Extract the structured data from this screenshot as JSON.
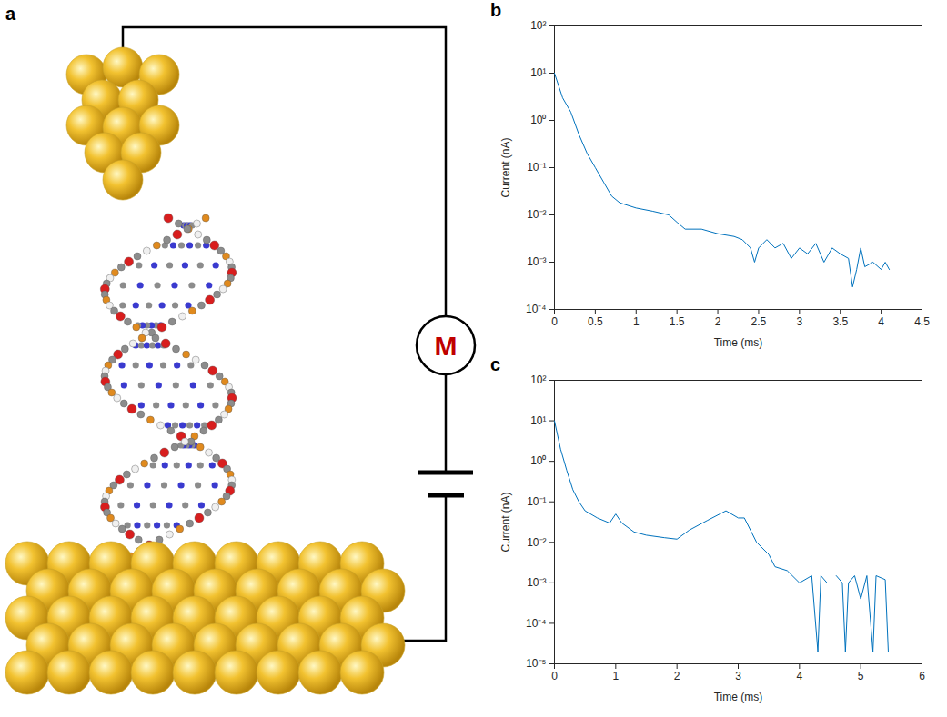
{
  "diagram": {
    "panel": "a",
    "meter_label": "M"
  },
  "chart_data": [
    {
      "panel": "b",
      "type": "line",
      "x": [
        0,
        0.1,
        0.2,
        0.3,
        0.4,
        0.5,
        0.6,
        0.7,
        0.8,
        1.0,
        1.2,
        1.4,
        1.5,
        1.6,
        1.8,
        2.0,
        2.2,
        2.3,
        2.4,
        2.45,
        2.5,
        2.6,
        2.7,
        2.8,
        2.9,
        3.0,
        3.1,
        3.2,
        3.3,
        3.4,
        3.5,
        3.6,
        3.65,
        3.7,
        3.75,
        3.8,
        3.9,
        4.0,
        4.05,
        4.1
      ],
      "values": [
        10,
        3,
        1.5,
        0.5,
        0.2,
        0.1,
        0.05,
        0.025,
        0.018,
        0.014,
        0.012,
        0.01,
        0.007,
        0.005,
        0.005,
        0.004,
        0.0035,
        0.003,
        0.002,
        0.001,
        0.002,
        0.003,
        0.002,
        0.0025,
        0.0012,
        0.002,
        0.0015,
        0.0025,
        0.001,
        0.002,
        0.0015,
        0.0012,
        0.0003,
        0.0007,
        0.002,
        0.0008,
        0.001,
        0.0007,
        0.001,
        0.0007
      ],
      "color": "#0072bd",
      "xlabel": "Time (ms)",
      "ylabel": "Current (nA)",
      "xlim": [
        0,
        4.5
      ],
      "xticks": [
        0,
        0.5,
        1,
        1.5,
        2,
        2.5,
        3,
        3.5,
        4,
        4.5
      ],
      "ylim": [
        0.0001,
        100
      ],
      "yticks": [
        {
          "value": 0.0001,
          "label": "10⁻⁴"
        },
        {
          "value": 0.001,
          "label": "10⁻³"
        },
        {
          "value": 0.01,
          "label": "10⁻²"
        },
        {
          "value": 0.1,
          "label": "10⁻¹"
        },
        {
          "value": 1,
          "label": "10⁰"
        },
        {
          "value": 10,
          "label": "10¹"
        },
        {
          "value": 100,
          "label": "10²"
        }
      ],
      "log": "y",
      "grid": false
    },
    {
      "panel": "c",
      "type": "line",
      "x": [
        0,
        0.1,
        0.2,
        0.3,
        0.4,
        0.5,
        0.7,
        0.9,
        1.0,
        1.1,
        1.3,
        1.5,
        1.8,
        2.0,
        2.2,
        2.5,
        2.8,
        3.0,
        3.1,
        3.3,
        3.5,
        3.6,
        3.8,
        4.0,
        4.2,
        4.3,
        4.35,
        4.45,
        4.55,
        4.6,
        4.7,
        4.75,
        4.8,
        4.9,
        5.0,
        5.1,
        5.2,
        5.25,
        5.4,
        5.45
      ],
      "values": [
        10,
        2,
        0.6,
        0.2,
        0.1,
        0.06,
        0.04,
        0.03,
        0.05,
        0.03,
        0.018,
        0.015,
        0.013,
        0.012,
        0.02,
        0.035,
        0.06,
        0.04,
        0.04,
        0.01,
        0.005,
        0.0025,
        0.002,
        0.001,
        0.0015,
        2e-05,
        0.0015,
        0.001,
        null,
        0.0015,
        0.001,
        2e-05,
        0.001,
        0.0015,
        0.0004,
        0.0015,
        2e-05,
        0.0015,
        0.0012,
        2e-05
      ],
      "color": "#0072bd",
      "xlabel": "Time (ms)",
      "ylabel": "Current (nA)",
      "xlim": [
        0,
        6
      ],
      "xticks": [
        0,
        1,
        2,
        3,
        4,
        5,
        6
      ],
      "ylim": [
        1e-05,
        100
      ],
      "yticks": [
        {
          "value": 1e-05,
          "label": "10⁻⁵"
        },
        {
          "value": 0.0001,
          "label": "10⁻⁴"
        },
        {
          "value": 0.001,
          "label": "10⁻³"
        },
        {
          "value": 0.01,
          "label": "10⁻²"
        },
        {
          "value": 0.1,
          "label": "10⁻¹"
        },
        {
          "value": 1,
          "label": "10⁰"
        },
        {
          "value": 10,
          "label": "10¹"
        },
        {
          "value": 100,
          "label": "10²"
        }
      ],
      "log": "y",
      "grid": false
    }
  ]
}
